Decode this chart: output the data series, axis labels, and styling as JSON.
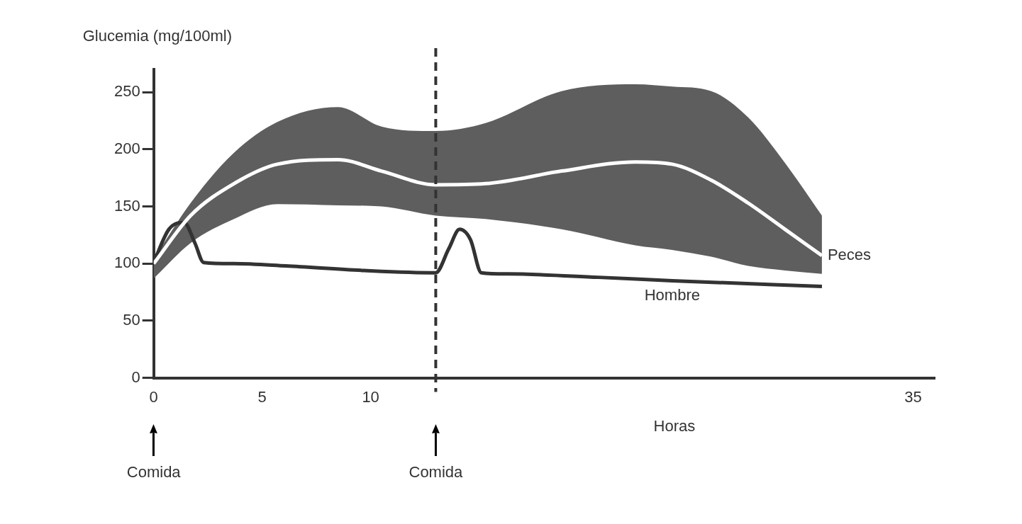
{
  "chart_data": {
    "type": "line",
    "xlabel": "Horas",
    "ylabel": "Glucemia (mg/100ml)",
    "xlim": [
      0,
      36
    ],
    "xticks": [
      0,
      5,
      10,
      35
    ],
    "ylim": [
      0,
      270
    ],
    "yticks": [
      0,
      50,
      100,
      150,
      200,
      250
    ],
    "grid": false,
    "legend": false,
    "marker": "none",
    "line_style": "solid",
    "series": [
      {
        "name": "Peces",
        "color": "#ffffff",
        "x": [
          0,
          1.7,
          3.7,
          5.7,
          8.5,
          10.5,
          13,
          15.3,
          18.8,
          22.2,
          23.9,
          25.7,
          27.4,
          29.1,
          30.8
        ],
        "values": [
          100,
          142,
          170,
          187,
          191,
          181,
          169,
          170,
          181,
          189,
          187,
          173,
          153,
          130,
          107
        ],
        "lower": [
          87,
          118,
          139,
          152,
          151,
          150,
          142,
          139,
          130,
          116,
          112,
          106,
          98,
          94,
          91
        ],
        "upper": [
          104,
          153,
          197,
          224,
          237,
          220,
          216,
          223,
          251,
          257,
          255,
          251,
          228,
          188,
          142
        ]
      },
      {
        "name": "Hombre",
        "color": "#333333",
        "x": [
          0,
          0.7,
          1.4,
          1.9,
          2.3,
          3.7,
          6.1,
          9.7,
          13,
          13.6,
          14.1,
          14.6,
          15.1,
          16.3,
          20.5,
          23.9,
          30.8
        ],
        "values": [
          101,
          130,
          136,
          118,
          101,
          100,
          98,
          94,
          92,
          113,
          130,
          121,
          92,
          91,
          88,
          85,
          80
        ]
      }
    ],
    "ref_lines": [
      {
        "axis": "x",
        "value": 13,
        "line_style": "dashed",
        "color": "#333333"
      }
    ],
    "annotations": [
      "Comida",
      "Comida"
    ]
  }
}
